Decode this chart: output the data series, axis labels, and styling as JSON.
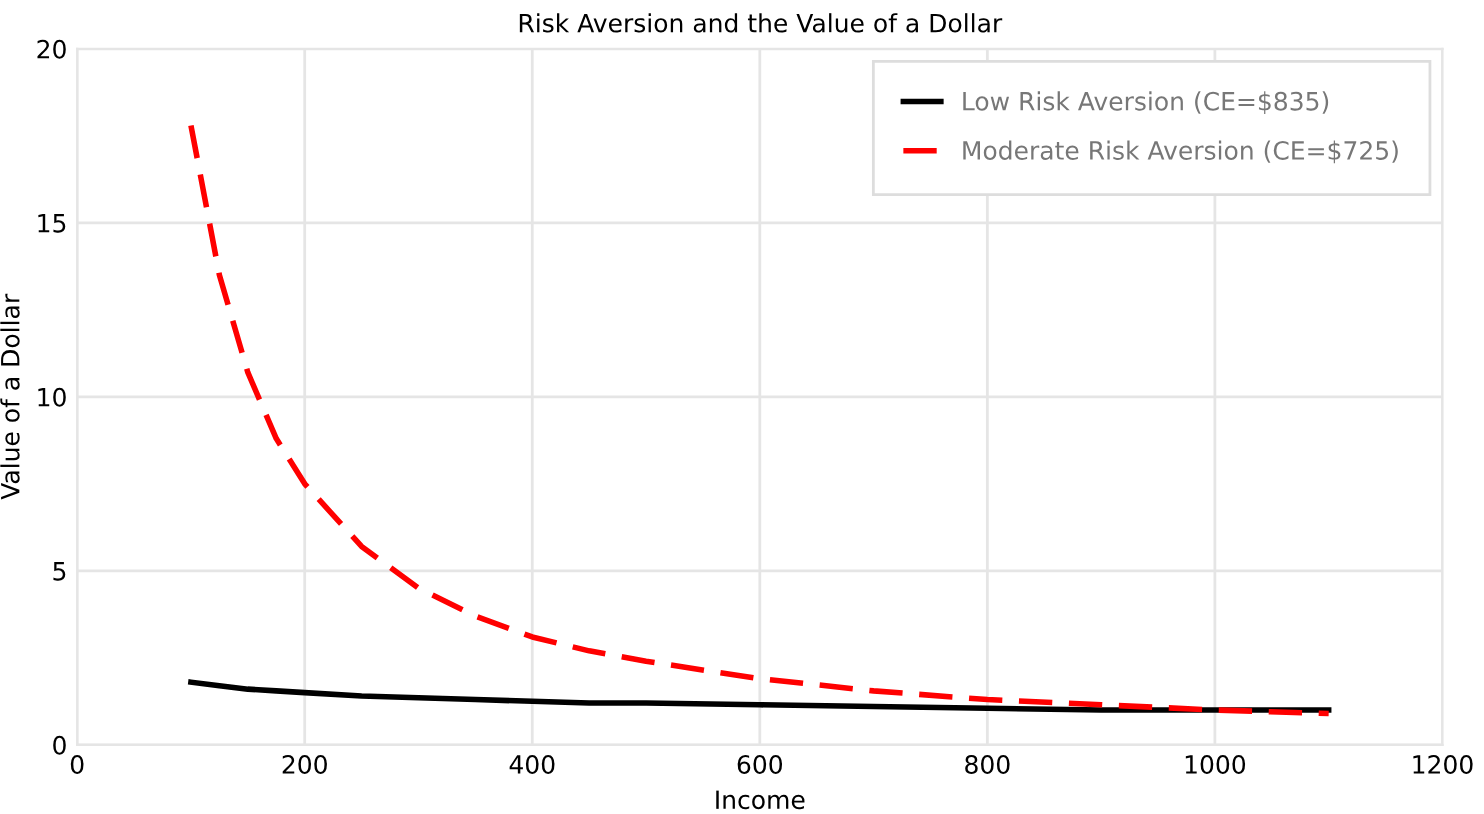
{
  "chart_data": {
    "type": "line",
    "title": "Risk Aversion and the Value of a Dollar",
    "xlabel": "Income",
    "ylabel": "Value of a Dollar",
    "x": [
      100,
      125,
      150,
      175,
      200,
      250,
      300,
      350,
      400,
      450,
      500,
      600,
      700,
      800,
      900,
      1000,
      1100
    ],
    "series": [
      {
        "name": "Low Risk Aversion (CE=$835)",
        "color": "#000000",
        "line_style": "solid",
        "values": [
          1.8,
          1.7,
          1.6,
          1.55,
          1.5,
          1.4,
          1.35,
          1.3,
          1.25,
          1.2,
          1.2,
          1.15,
          1.1,
          1.05,
          1.0,
          1.0,
          1.0
        ]
      },
      {
        "name": "Moderate Risk Aversion (CE=$725)",
        "color": "#ff0000",
        "line_style": "dashed",
        "values": [
          17.8,
          13.5,
          10.7,
          8.8,
          7.5,
          5.7,
          4.5,
          3.7,
          3.1,
          2.7,
          2.4,
          1.9,
          1.55,
          1.3,
          1.15,
          1.0,
          0.9
        ]
      }
    ],
    "xlim": [
      0,
      1200
    ],
    "xticks": [
      0,
      200,
      400,
      600,
      800,
      1000,
      1200
    ],
    "ylim": [
      0,
      20
    ],
    "yticks": [
      0,
      5,
      10,
      15,
      20
    ],
    "grid": true,
    "legend": "top right",
    "marker": "none"
  }
}
